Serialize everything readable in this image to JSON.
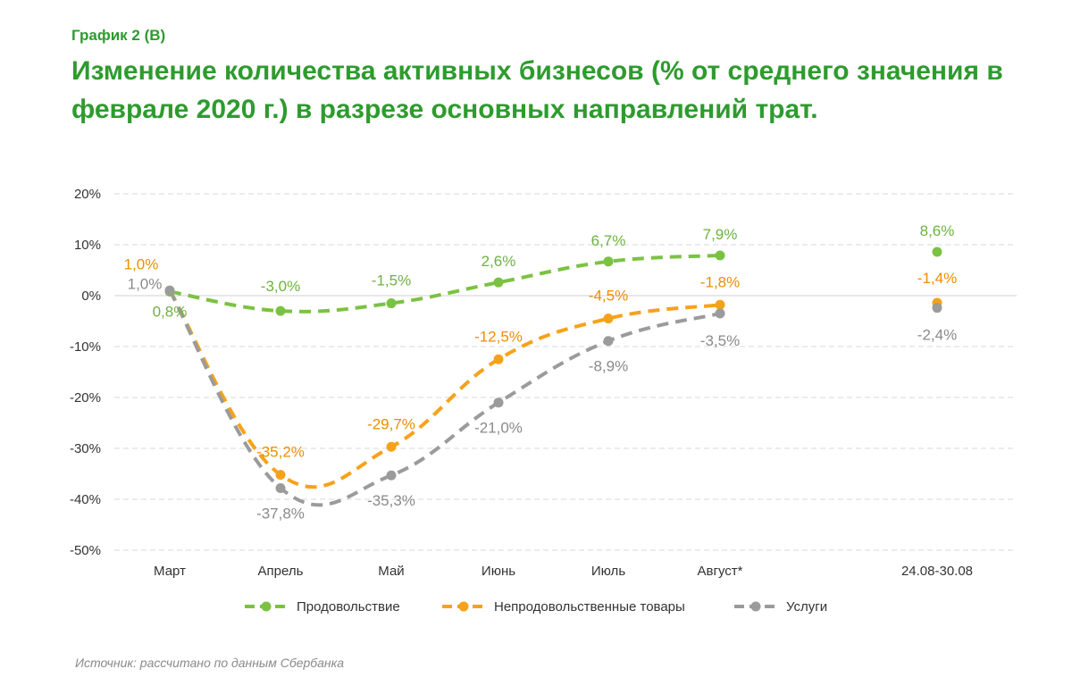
{
  "header": {
    "chart_number": "График 2 (В)",
    "title": "Изменение количества активных бизнесов (% от среднего значения в феврале 2020 г.) в разрезе основных направлений трат."
  },
  "source": "Источник: рассчитано по данным Сбербанка",
  "chart_data": {
    "type": "line",
    "categories": [
      "Март",
      "Апрель",
      "Май",
      "Июнь",
      "Июль",
      "Август*",
      "24.08-30.08"
    ],
    "y_ticks": [
      "20%",
      "10%",
      "0%",
      "-10%",
      "-20%",
      "-30%",
      "-40%",
      "-50%"
    ],
    "ylim": [
      -50,
      20
    ],
    "grid": true,
    "legend_position": "bottom",
    "series": [
      {
        "name": "Продовольствие",
        "color": "#7cc242",
        "label_color": "#6cb33f",
        "values": [
          0.8,
          -3.0,
          -1.5,
          2.6,
          6.7,
          7.9,
          8.6
        ],
        "labels": [
          "0,8%",
          "-3,0%",
          "-1,5%",
          "2,6%",
          "6,7%",
          "7,9%",
          "8,6%"
        ]
      },
      {
        "name": "Непродовольственные товары",
        "color": "#f5a21b",
        "label_color": "#f08c00",
        "values": [
          1.0,
          -35.2,
          -29.7,
          -12.5,
          -4.5,
          -1.8,
          -1.4
        ],
        "labels": [
          "1,0%",
          "-35,2%",
          "-29,7%",
          "-12,5%",
          "-4,5%",
          "-1,8%",
          "-1,4%"
        ]
      },
      {
        "name": "Услуги",
        "color": "#9b9b9b",
        "label_color": "#8a8a8a",
        "values": [
          1.0,
          -37.8,
          -35.3,
          -21.0,
          -8.9,
          -3.5,
          -2.4
        ],
        "labels": [
          "1,0%",
          "-37,8%",
          "-35,3%",
          "-21,0%",
          "-8,9%",
          "-3,5%",
          "-2,4%"
        ]
      }
    ]
  }
}
